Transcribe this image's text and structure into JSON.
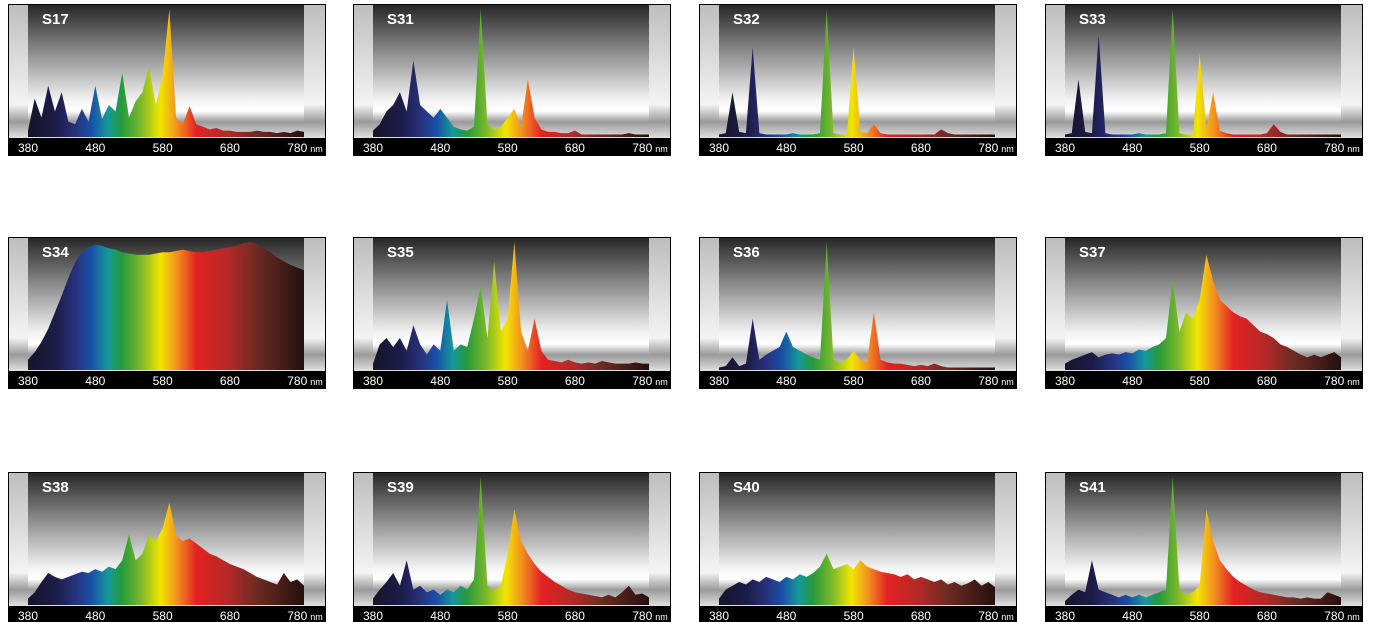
{
  "chart_data": [
    {
      "type": "area",
      "title": "S17",
      "xlabel": "nm",
      "xlim": [
        380,
        790
      ],
      "ylim": [
        0,
        100
      ],
      "xticks": [
        380,
        480,
        580,
        680,
        780
      ],
      "x": [
        380,
        390,
        400,
        410,
        420,
        430,
        440,
        450,
        460,
        470,
        480,
        490,
        500,
        510,
        520,
        530,
        540,
        550,
        560,
        570,
        580,
        590,
        600,
        610,
        620,
        630,
        640,
        650,
        660,
        670,
        680,
        690,
        700,
        710,
        720,
        730,
        740,
        750,
        760,
        770,
        780,
        790
      ],
      "values": [
        5,
        30,
        15,
        40,
        20,
        35,
        12,
        10,
        22,
        12,
        40,
        14,
        25,
        20,
        50,
        15,
        28,
        35,
        55,
        25,
        48,
        100,
        15,
        10,
        24,
        10,
        8,
        6,
        7,
        5,
        5,
        4,
        4,
        4,
        5,
        4,
        4,
        3,
        4,
        3,
        5,
        4
      ]
    },
    {
      "type": "area",
      "title": "S31",
      "xlabel": "nm",
      "xlim": [
        380,
        790
      ],
      "ylim": [
        0,
        100
      ],
      "xticks": [
        380,
        480,
        580,
        680,
        780
      ],
      "x": [
        380,
        390,
        400,
        410,
        420,
        430,
        440,
        450,
        460,
        470,
        480,
        490,
        500,
        510,
        520,
        530,
        540,
        550,
        560,
        570,
        580,
        590,
        600,
        610,
        620,
        630,
        640,
        650,
        660,
        670,
        680,
        690,
        700,
        710,
        720,
        730,
        740,
        750,
        760,
        770,
        780,
        790
      ],
      "values": [
        5,
        10,
        20,
        25,
        35,
        20,
        60,
        25,
        20,
        15,
        22,
        15,
        8,
        6,
        5,
        8,
        100,
        10,
        6,
        8,
        15,
        22,
        8,
        45,
        15,
        6,
        4,
        4,
        3,
        3,
        5,
        2,
        2,
        2,
        2,
        2,
        2,
        2,
        3,
        2,
        2,
        2
      ]
    },
    {
      "type": "area",
      "title": "S32",
      "xlabel": "nm",
      "xlim": [
        380,
        790
      ],
      "ylim": [
        0,
        100
      ],
      "xticks": [
        380,
        480,
        580,
        680,
        780
      ],
      "x": [
        380,
        390,
        400,
        410,
        420,
        430,
        440,
        450,
        460,
        470,
        480,
        490,
        500,
        510,
        520,
        530,
        540,
        550,
        560,
        570,
        580,
        590,
        600,
        610,
        620,
        630,
        640,
        650,
        660,
        670,
        680,
        690,
        700,
        710,
        720,
        730,
        740,
        750,
        760,
        770,
        780,
        790
      ],
      "values": [
        2,
        3,
        35,
        4,
        3,
        70,
        3,
        2,
        2,
        2,
        2,
        3,
        2,
        2,
        2,
        3,
        100,
        3,
        2,
        2,
        70,
        4,
        3,
        10,
        3,
        2,
        2,
        2,
        2,
        2,
        2,
        2,
        2,
        6,
        3,
        2,
        2,
        2,
        2,
        2,
        2,
        2
      ]
    },
    {
      "type": "area",
      "title": "S33",
      "xlabel": "nm",
      "xlim": [
        380,
        790
      ],
      "ylim": [
        0,
        100
      ],
      "xticks": [
        380,
        480,
        580,
        680,
        780
      ],
      "x": [
        380,
        390,
        400,
        410,
        420,
        430,
        440,
        450,
        460,
        470,
        480,
        490,
        500,
        510,
        520,
        530,
        540,
        550,
        560,
        570,
        580,
        590,
        600,
        610,
        620,
        630,
        640,
        650,
        660,
        670,
        680,
        690,
        700,
        710,
        720,
        730,
        740,
        750,
        760,
        770,
        780,
        790
      ],
      "values": [
        2,
        3,
        45,
        4,
        3,
        80,
        3,
        2,
        2,
        2,
        2,
        3,
        2,
        2,
        2,
        3,
        100,
        3,
        2,
        2,
        65,
        6,
        35,
        5,
        3,
        2,
        2,
        2,
        2,
        2,
        3,
        10,
        4,
        2,
        2,
        2,
        2,
        2,
        2,
        2,
        2,
        2
      ]
    },
    {
      "type": "area",
      "title": "S34",
      "xlabel": "nm",
      "xlim": [
        380,
        790
      ],
      "ylim": [
        0,
        100
      ],
      "xticks": [
        380,
        480,
        580,
        680,
        780
      ],
      "x": [
        380,
        390,
        400,
        410,
        420,
        430,
        440,
        450,
        460,
        470,
        480,
        490,
        500,
        510,
        520,
        530,
        540,
        550,
        560,
        570,
        580,
        590,
        600,
        610,
        620,
        630,
        640,
        650,
        660,
        670,
        680,
        690,
        700,
        710,
        720,
        730,
        740,
        750,
        760,
        770,
        780,
        790
      ],
      "values": [
        8,
        14,
        22,
        32,
        45,
        58,
        72,
        84,
        92,
        96,
        98,
        97,
        95,
        94,
        92,
        91,
        90,
        90,
        90,
        91,
        92,
        92,
        93,
        94,
        93,
        92,
        92,
        93,
        94,
        95,
        96,
        97,
        99,
        100,
        98,
        95,
        92,
        88,
        85,
        82,
        80,
        78
      ]
    },
    {
      "type": "area",
      "title": "S35",
      "xlabel": "nm",
      "xlim": [
        380,
        790
      ],
      "ylim": [
        0,
        100
      ],
      "xticks": [
        380,
        480,
        580,
        680,
        780
      ],
      "x": [
        380,
        390,
        400,
        410,
        420,
        430,
        440,
        450,
        460,
        470,
        480,
        490,
        500,
        510,
        520,
        530,
        540,
        550,
        560,
        570,
        580,
        590,
        600,
        610,
        620,
        630,
        640,
        650,
        660,
        670,
        680,
        690,
        700,
        710,
        720,
        730,
        740,
        750,
        760,
        770,
        780,
        790
      ],
      "values": [
        5,
        20,
        25,
        18,
        25,
        15,
        35,
        20,
        12,
        20,
        15,
        55,
        15,
        20,
        18,
        40,
        65,
        25,
        85,
        30,
        40,
        100,
        30,
        15,
        40,
        15,
        8,
        7,
        6,
        8,
        6,
        5,
        6,
        5,
        7,
        6,
        5,
        5,
        5,
        6,
        5,
        5
      ]
    },
    {
      "type": "area",
      "title": "S36",
      "xlabel": "nm",
      "xlim": [
        380,
        790
      ],
      "ylim": [
        0,
        100
      ],
      "xticks": [
        380,
        480,
        580,
        680,
        780
      ],
      "x": [
        380,
        390,
        400,
        410,
        420,
        430,
        440,
        450,
        460,
        470,
        480,
        490,
        500,
        510,
        520,
        530,
        540,
        550,
        560,
        570,
        580,
        590,
        600,
        610,
        620,
        630,
        640,
        650,
        660,
        670,
        680,
        690,
        700,
        710,
        720,
        730,
        740,
        750,
        760,
        770,
        780,
        790
      ],
      "values": [
        2,
        3,
        10,
        3,
        5,
        40,
        8,
        12,
        15,
        18,
        30,
        18,
        15,
        12,
        10,
        8,
        100,
        8,
        6,
        8,
        15,
        8,
        6,
        45,
        8,
        6,
        5,
        5,
        4,
        3,
        4,
        3,
        5,
        3,
        2,
        2,
        2,
        2,
        2,
        2,
        2,
        2
      ]
    },
    {
      "type": "area",
      "title": "S37",
      "xlabel": "nm",
      "xlim": [
        380,
        790
      ],
      "ylim": [
        0,
        100
      ],
      "xticks": [
        380,
        480,
        580,
        680,
        780
      ],
      "x": [
        380,
        390,
        400,
        410,
        420,
        430,
        440,
        450,
        460,
        470,
        480,
        490,
        500,
        510,
        520,
        530,
        540,
        550,
        560,
        570,
        580,
        590,
        600,
        610,
        620,
        630,
        640,
        650,
        660,
        670,
        680,
        690,
        700,
        710,
        720,
        730,
        740,
        750,
        760,
        770,
        780,
        790
      ],
      "values": [
        5,
        8,
        10,
        12,
        14,
        10,
        12,
        13,
        12,
        14,
        13,
        16,
        15,
        18,
        20,
        25,
        70,
        30,
        45,
        40,
        55,
        90,
        70,
        55,
        50,
        45,
        42,
        40,
        35,
        30,
        28,
        25,
        20,
        18,
        15,
        12,
        10,
        12,
        10,
        12,
        14,
        10
      ]
    },
    {
      "type": "area",
      "title": "S38",
      "xlabel": "nm",
      "xlim": [
        380,
        790
      ],
      "ylim": [
        0,
        100
      ],
      "xticks": [
        380,
        480,
        580,
        680,
        780
      ],
      "x": [
        380,
        390,
        400,
        410,
        420,
        430,
        440,
        450,
        460,
        470,
        480,
        490,
        500,
        510,
        520,
        530,
        540,
        550,
        560,
        570,
        580,
        590,
        600,
        610,
        620,
        630,
        640,
        650,
        660,
        670,
        680,
        690,
        700,
        710,
        720,
        730,
        740,
        750,
        760,
        770,
        780,
        790
      ],
      "values": [
        5,
        10,
        18,
        25,
        22,
        20,
        22,
        24,
        26,
        25,
        28,
        26,
        30,
        28,
        35,
        55,
        35,
        40,
        55,
        50,
        60,
        80,
        55,
        50,
        52,
        48,
        44,
        40,
        38,
        35,
        32,
        30,
        28,
        25,
        22,
        20,
        18,
        16,
        25,
        18,
        20,
        15
      ]
    },
    {
      "type": "area",
      "title": "S39",
      "xlabel": "nm",
      "xlim": [
        380,
        790
      ],
      "ylim": [
        0,
        100
      ],
      "xticks": [
        380,
        480,
        580,
        680,
        780
      ],
      "x": [
        380,
        390,
        400,
        410,
        420,
        430,
        440,
        450,
        460,
        470,
        480,
        490,
        500,
        510,
        520,
        530,
        540,
        550,
        560,
        570,
        580,
        590,
        600,
        610,
        620,
        630,
        640,
        650,
        660,
        670,
        680,
        690,
        700,
        710,
        720,
        730,
        740,
        750,
        760,
        770,
        780,
        790
      ],
      "values": [
        5,
        12,
        18,
        25,
        15,
        35,
        12,
        15,
        10,
        12,
        8,
        12,
        10,
        15,
        12,
        20,
        100,
        15,
        12,
        15,
        40,
        75,
        50,
        40,
        32,
        26,
        22,
        18,
        15,
        12,
        10,
        9,
        8,
        7,
        6,
        8,
        6,
        10,
        15,
        8,
        9,
        6
      ]
    },
    {
      "type": "area",
      "title": "S40",
      "xlabel": "nm",
      "xlim": [
        380,
        790
      ],
      "ylim": [
        0,
        100
      ],
      "xticks": [
        380,
        480,
        580,
        680,
        780
      ],
      "x": [
        380,
        390,
        400,
        410,
        420,
        430,
        440,
        450,
        460,
        470,
        480,
        490,
        500,
        510,
        520,
        530,
        540,
        550,
        560,
        570,
        580,
        590,
        600,
        610,
        620,
        630,
        640,
        650,
        660,
        670,
        680,
        690,
        700,
        710,
        720,
        730,
        740,
        750,
        760,
        770,
        780,
        790
      ],
      "values": [
        5,
        12,
        15,
        18,
        16,
        20,
        18,
        22,
        20,
        18,
        22,
        20,
        24,
        22,
        25,
        30,
        40,
        28,
        30,
        32,
        28,
        35,
        30,
        28,
        26,
        25,
        24,
        22,
        24,
        20,
        22,
        20,
        18,
        20,
        16,
        18,
        15,
        17,
        20,
        15,
        18,
        14
      ]
    },
    {
      "type": "area",
      "title": "S41",
      "xlabel": "nm",
      "xlim": [
        380,
        790
      ],
      "ylim": [
        0,
        100
      ],
      "xticks": [
        380,
        480,
        580,
        680,
        780
      ],
      "x": [
        380,
        390,
        400,
        410,
        420,
        430,
        440,
        450,
        460,
        470,
        480,
        490,
        500,
        510,
        520,
        530,
        540,
        550,
        560,
        570,
        580,
        590,
        600,
        610,
        620,
        630,
        640,
        650,
        660,
        670,
        680,
        690,
        700,
        710,
        720,
        730,
        740,
        750,
        760,
        770,
        780,
        790
      ],
      "values": [
        3,
        8,
        12,
        10,
        35,
        12,
        10,
        8,
        6,
        8,
        6,
        8,
        6,
        8,
        10,
        12,
        100,
        12,
        8,
        10,
        15,
        75,
        50,
        35,
        28,
        22,
        18,
        15,
        12,
        10,
        9,
        8,
        7,
        6,
        6,
        5,
        6,
        5,
        5,
        10,
        8,
        6
      ]
    }
  ]
}
